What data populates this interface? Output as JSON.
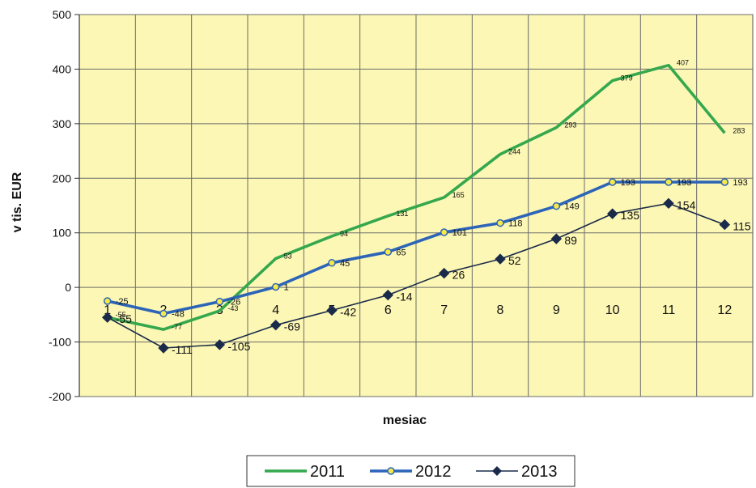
{
  "chart_data": {
    "type": "line",
    "x": [
      1,
      2,
      3,
      4,
      5,
      6,
      7,
      8,
      9,
      10,
      11,
      12
    ],
    "ylim": [
      -200,
      500
    ],
    "yticks": [
      -200,
      -100,
      0,
      100,
      200,
      300,
      400,
      500
    ],
    "xlabel": "mesiac",
    "ylabel": "v tis. EUR",
    "grid": true,
    "legend": "bottom",
    "background": "#fcf7b4",
    "series": [
      {
        "name": "2011",
        "color": "#35a84e",
        "marker": "none",
        "values": [
          -55,
          -77,
          -43,
          53,
          94,
          131,
          165,
          244,
          293,
          379,
          407,
          283
        ],
        "labels": [
          "-55",
          "-77",
          "-43",
          "53",
          "94",
          "131",
          "165",
          "244",
          "293",
          "379",
          "407",
          "283"
        ]
      },
      {
        "name": "2012",
        "color": "#2c64b8",
        "marker": "circle",
        "markerFill": "#f6e94a",
        "values": [
          -25,
          -48,
          -26,
          1,
          45,
          65,
          101,
          118,
          149,
          193,
          193,
          193
        ],
        "labels": [
          "-25",
          "-48",
          "-26",
          "1",
          "45",
          "65",
          "101",
          "118",
          "149",
          "193",
          "193",
          "193"
        ]
      },
      {
        "name": "2013",
        "color": "#1a2b4a",
        "marker": "diamond",
        "values": [
          -55,
          -111,
          -105,
          -69,
          -42,
          -14,
          26,
          52,
          89,
          135,
          154,
          115
        ],
        "labels": [
          "-55",
          "-111",
          "-105",
          "-69",
          "-42",
          "-14",
          "26",
          "52",
          "89",
          "135",
          "154",
          "115"
        ]
      }
    ]
  }
}
